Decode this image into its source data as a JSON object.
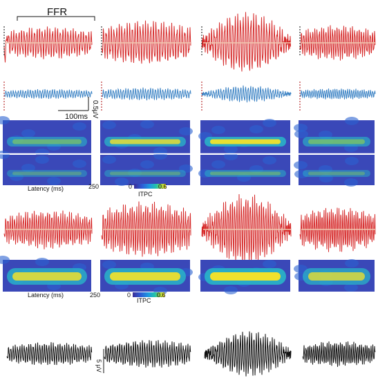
{
  "figure": {
    "ffr_label": "FFR",
    "time_scale_label": "100ms",
    "amp_scale_label": "0.5μV",
    "amp_scale_label_2": "5 μV",
    "colorbar": {
      "min": "0",
      "max": "0.6",
      "label": "ITPC",
      "colormap": [
        "#3b2e98",
        "#2d5bd6",
        "#1d9be0",
        "#23c3a8",
        "#9bd34a",
        "#f3e22b"
      ]
    },
    "latency_label": "Latency (ms)",
    "latency_max": "250"
  },
  "chart_data": [
    {
      "type": "line",
      "panel": "Top red FFR waveforms",
      "series": [
        {
          "color": "#d62a2a",
          "envelopes": [
            0.55,
            0.75,
            0.95,
            0.6
          ]
        }
      ]
    },
    {
      "type": "line",
      "panel": "Blue waveforms",
      "series": [
        {
          "color": "#3a82c4",
          "envelopes": [
            0.35,
            0.45,
            0.55,
            0.4
          ]
        }
      ]
    },
    {
      "type": "heatmap",
      "panel": "ITPC maps (upper pair)",
      "color_range": [
        0,
        0.6
      ],
      "rows": [
        {
          "band_strength": [
            0.45,
            0.75,
            0.95,
            0.5
          ]
        },
        {
          "band_strength": [
            0.15,
            0.2,
            0.3,
            0.2
          ]
        }
      ]
    },
    {
      "type": "line",
      "panel": "Middle red waveforms",
      "series": [
        {
          "color": "#d62a2a",
          "envelopes": [
            0.6,
            0.85,
            1.0,
            0.7
          ]
        }
      ]
    },
    {
      "type": "heatmap",
      "panel": "ITPC maps (lower)",
      "color_range": [
        0,
        0.6
      ],
      "rows": [
        {
          "band_strength": [
            0.8,
            0.9,
            1.0,
            0.7
          ]
        }
      ]
    },
    {
      "type": "line",
      "panel": "Bottom black stimulus waveforms",
      "series": [
        {
          "color": "#111111",
          "envelopes": [
            0.5,
            0.6,
            0.9,
            0.55
          ]
        }
      ]
    }
  ]
}
